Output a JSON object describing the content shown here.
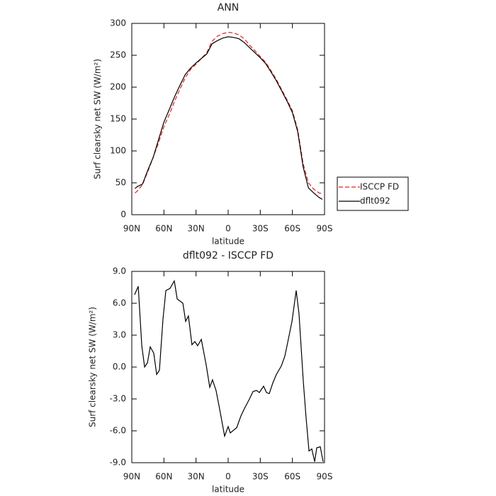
{
  "chart_data": [
    {
      "type": "line",
      "title": "ANN",
      "xlabel": "latitude",
      "ylabel": "Surf clearsky net SW (W/m²)",
      "x": [
        87,
        85,
        80,
        75,
        70,
        65,
        60,
        55,
        50,
        45,
        40,
        35,
        30,
        25,
        20,
        15,
        10,
        5,
        0,
        -5,
        -10,
        -15,
        -20,
        -25,
        -30,
        -35,
        -40,
        -45,
        -50,
        -55,
        -60,
        -65,
        -70,
        -75,
        -80,
        -85,
        -88
      ],
      "series": [
        {
          "name": "ISCCP FD",
          "color": "#e0201e",
          "dash": true,
          "values": [
            34,
            37,
            47,
            68,
            90,
            113,
            138,
            157,
            178,
            197,
            215,
            228,
            236,
            245,
            254,
            272,
            280,
            284,
            286,
            285,
            282,
            276,
            266,
            257,
            248,
            239,
            226,
            212,
            196,
            180,
            163,
            133,
            80,
            50,
            40,
            34,
            33
          ]
        },
        {
          "name": "dflt092",
          "color": "#000000",
          "dash": false,
          "values": [
            41,
            44,
            48,
            70,
            90,
            118,
            145,
            165,
            185,
            203,
            220,
            230,
            238,
            245,
            252,
            268,
            273,
            277,
            279,
            278,
            276,
            270,
            262,
            254,
            246,
            237,
            224,
            210,
            194,
            178,
            160,
            130,
            75,
            42,
            34,
            27,
            24
          ]
        }
      ],
      "xlim": [
        90,
        -90
      ],
      "xticks": [
        {
          "value": 90,
          "label": "90N"
        },
        {
          "value": 60,
          "label": "60N"
        },
        {
          "value": 30,
          "label": "30N"
        },
        0,
        {
          "value": -30,
          "label": "30S"
        },
        {
          "value": -60,
          "label": "60S"
        },
        {
          "value": -90,
          "label": "90S"
        }
      ],
      "ylim": [
        0,
        300
      ],
      "yticks": [
        0,
        50,
        100,
        150,
        200,
        250,
        300
      ],
      "legend": "right"
    },
    {
      "type": "line",
      "title": "dflt092 - ISCCP FD",
      "xlabel": "latitude",
      "ylabel": "Surf clearsky net SW (W/m²)",
      "x": [
        87.4,
        84,
        80.7,
        78,
        75.4,
        72.8,
        69.5,
        66.8,
        64.2,
        60.9,
        58.2,
        54.3,
        50.3,
        47.6,
        42.3,
        39.7,
        37.1,
        33.8,
        31.1,
        28.5,
        25.1,
        20.5,
        17.2,
        14.6,
        11.3,
        7.9,
        3.3,
        0,
        -2,
        -8,
        -11.9,
        -15.2,
        -19.9,
        -23.2,
        -26.5,
        -29.1,
        -33.1,
        -35.8,
        -38.4,
        -41.7,
        -45,
        -49.6,
        -52.9,
        -56.2,
        -59.6,
        -63.5,
        -66.2,
        -70.2,
        -72.8,
        -75.5,
        -78.1,
        -80.8,
        -82.7,
        -86,
        -88.7
      ],
      "values": [
        6.8,
        7.6,
        2.0,
        0.0,
        0.4,
        1.9,
        1.3,
        -0.7,
        -0.3,
        4.5,
        7.2,
        7.4,
        8.1,
        6.4,
        6.0,
        4.3,
        4.8,
        2.1,
        2.4,
        2.0,
        2.6,
        0.2,
        -1.9,
        -1.2,
        -2.2,
        -4.0,
        -6.5,
        -5.6,
        -6.2,
        -5.7,
        -4.6,
        -3.9,
        -3.0,
        -2.3,
        -2.2,
        -2.4,
        -1.8,
        -2.4,
        -2.5,
        -1.5,
        -0.7,
        0.1,
        1.0,
        2.6,
        4.3,
        7.2,
        5.0,
        -1.4,
        -4.8,
        -7.9,
        -7.7,
        -8.9,
        -7.6,
        -7.5,
        -8.9
      ],
      "color": "#000000",
      "xlim": [
        90,
        -90
      ],
      "xticks": [
        {
          "value": 90,
          "label": "90N"
        },
        {
          "value": 60,
          "label": "60N"
        },
        {
          "value": 30,
          "label": "30N"
        },
        0,
        {
          "value": -30,
          "label": "30S"
        },
        {
          "value": -60,
          "label": "60S"
        },
        {
          "value": -90,
          "label": "90S"
        }
      ],
      "ylim": [
        -9,
        9
      ],
      "yticks": [
        {
          "value": -9,
          "label": "-9.0"
        },
        {
          "value": -6,
          "label": "-6.0"
        },
        {
          "value": -3,
          "label": "-3.0"
        },
        {
          "value": 0,
          "label": "0.0"
        },
        {
          "value": 3,
          "label": "3.0"
        },
        {
          "value": 6,
          "label": "6.0"
        },
        {
          "value": 9,
          "label": "9.0"
        }
      ]
    }
  ]
}
